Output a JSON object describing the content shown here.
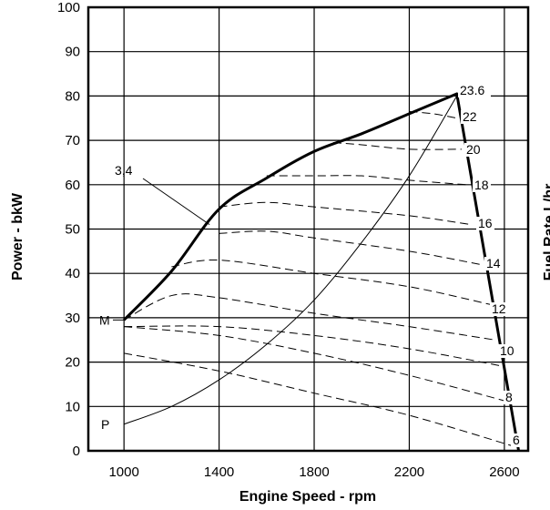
{
  "chart_data": {
    "type": "line",
    "title": "",
    "xlabel": "Engine Speed - rpm",
    "ylabel": "Power - bkW",
    "y2label": "Fuel Rate L/hr",
    "xlim": [
      850,
      2700
    ],
    "ylim": [
      0,
      100
    ],
    "x_ticks": [
      1000,
      1400,
      1800,
      2200,
      2600
    ],
    "y_ticks": [
      0,
      10,
      20,
      30,
      40,
      50,
      60,
      70,
      80,
      90,
      100
    ],
    "grid": true,
    "max_power_curve": {
      "label": "3,4",
      "x": [
        1000,
        1200,
        1400,
        1600,
        1800,
        2000,
        2200,
        2400,
        2660
      ],
      "y": [
        29.5,
        40.5,
        54.5,
        61.5,
        67.5,
        71.5,
        76,
        80.5,
        0
      ]
    },
    "prop_curve": {
      "label": "P",
      "x": [
        1000,
        1200,
        1400,
        1600,
        1800,
        2000,
        2200,
        2400
      ],
      "y": [
        6,
        10,
        16,
        24,
        34,
        47,
        62,
        80
      ]
    },
    "m_label": "M",
    "fuel_rate_curves": [
      {
        "label": "6",
        "x": [
          1000,
          1400,
          1800,
          2200,
          2640
        ],
        "y": [
          22,
          18,
          13,
          8,
          1
        ]
      },
      {
        "label": "8",
        "x": [
          1000,
          1400,
          1800,
          2200,
          2620
        ],
        "y": [
          28,
          26,
          22,
          17,
          11
        ]
      },
      {
        "label": "10",
        "x": [
          1000,
          1400,
          1800,
          2200,
          2600
        ],
        "y": [
          28,
          28,
          26,
          23,
          19
        ]
      },
      {
        "label": "12",
        "x": [
          1000,
          1200,
          1400,
          1800,
          2200,
          2560
        ],
        "y": [
          29.5,
          35,
          34.5,
          31,
          28,
          25
        ]
      },
      {
        "label": "14",
        "x": [
          1200,
          1400,
          1800,
          2200,
          2540
        ],
        "y": [
          41.5,
          43,
          40,
          37,
          33
        ]
      },
      {
        "label": "16",
        "x": [
          1400,
          1600,
          1800,
          2200,
          2500
        ],
        "y": [
          49,
          49.5,
          48,
          45,
          42
        ]
      },
      {
        "label": "18",
        "x": [
          1400,
          1600,
          1800,
          2200,
          2460
        ],
        "y": [
          55,
          56,
          55,
          53,
          51
        ]
      },
      {
        "label": "20",
        "x": [
          1600,
          1800,
          2000,
          2200,
          2440
        ],
        "y": [
          62,
          62,
          62,
          61,
          60
        ]
      },
      {
        "label": "22",
        "x": [
          1880,
          2000,
          2200,
          2420
        ],
        "y": [
          69.5,
          69,
          68,
          68
        ]
      },
      {
        "label": "23.6",
        "x": [
          2200,
          2300,
          2400
        ],
        "y": [
          76.5,
          76,
          75
        ]
      }
    ],
    "right_labels": [
      "23.6",
      "22",
      "20",
      "18",
      "16",
      "14",
      "12",
      "10",
      "8",
      "6"
    ]
  }
}
